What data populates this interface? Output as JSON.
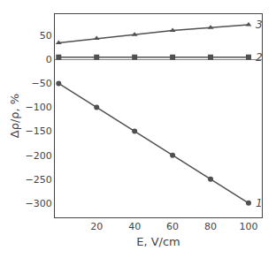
{
  "chart_data": {
    "type": "line",
    "x": [
      0,
      20,
      40,
      60,
      80,
      100
    ],
    "series": [
      {
        "name": "1",
        "color": "#505050",
        "marker": "circle",
        "values": [
          -50,
          -100,
          -150,
          -200,
          -250,
          -300
        ]
      },
      {
        "name": "2",
        "color": "#505050",
        "marker": "square",
        "values": [
          5,
          5,
          5,
          5,
          5,
          5
        ]
      },
      {
        "name": "3",
        "color": "#505050",
        "marker": "triangle-up",
        "values": [
          35,
          44,
          52,
          61,
          67,
          73
        ]
      }
    ],
    "xlabel": "E, V/cm",
    "ylabel": "Δρ/ρ, %",
    "xlim": [
      -2,
      107
    ],
    "ylim": [
      -330,
      95
    ],
    "xticks": [
      20,
      40,
      60,
      80,
      100
    ],
    "yticks": [
      {
        "value": -300,
        "label": "−300"
      },
      {
        "value": -250,
        "label": "−250"
      },
      {
        "value": -200,
        "label": "−200"
      },
      {
        "value": -150,
        "label": "−150"
      },
      {
        "value": -100,
        "label": "−100"
      },
      {
        "value": -50,
        "label": "−50"
      },
      0,
      50
    ],
    "grid": false
  }
}
